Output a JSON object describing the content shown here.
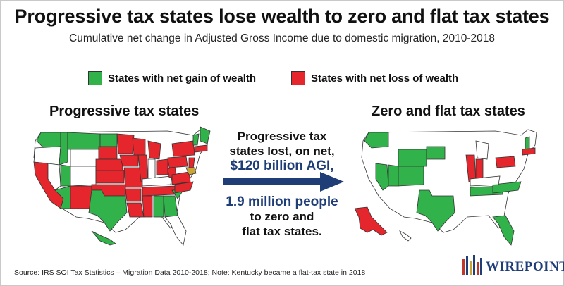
{
  "header": {
    "title": "Progressive tax states lose wealth to zero and flat tax states",
    "subtitle": "Cumulative net change in Adjusted Gross Income due to domestic migration, 2010-2018"
  },
  "legend": {
    "gain_label": "States with net gain of wealth",
    "loss_label": "States with net loss of wealth",
    "gain_color": "#31b24a",
    "loss_color": "#e5262c"
  },
  "panels": {
    "left_title": "Progressive tax states",
    "right_title": "Zero and flat tax states"
  },
  "center": {
    "line1": "Progressive tax",
    "line2": "states lost, on net,",
    "highlight1": "$120 billion AGI,",
    "highlight2": "1.9 million people",
    "line3": "to zero and",
    "line4": "flat tax states."
  },
  "footer": {
    "source": "Source: IRS SOI Tax Statistics – Migration Data 2010-2018; Note: Kentucky became a flat-tax state in 2018",
    "logo": "WIREPOINTS"
  },
  "colors": {
    "accent": "#1f3e78",
    "state_neutral": "#ffffff",
    "border": "#333333"
  }
}
